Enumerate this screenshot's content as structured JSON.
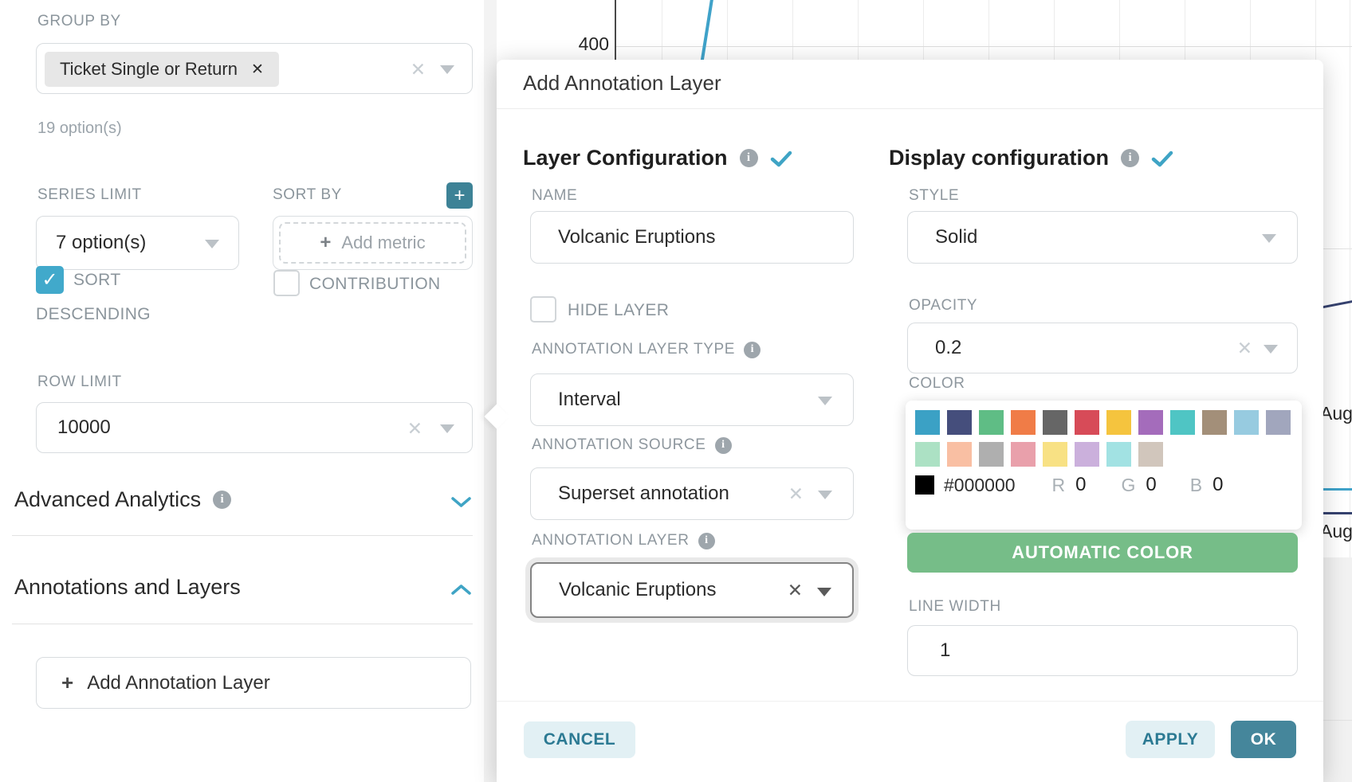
{
  "controls": {
    "group_by": {
      "label": "GROUP BY",
      "tag": "Ticket Single or Return",
      "tag_remove_icon": "✕",
      "hint": "19 option(s)"
    },
    "series_limit": {
      "label": "SERIES LIMIT",
      "value": "7 option(s)"
    },
    "sort_by": {
      "label": "SORT BY",
      "placeholder": "Add metric",
      "plus": "+"
    },
    "sort_descending": {
      "label_line1": "SORT",
      "label_line2": "DESCENDING",
      "checked": true,
      "check_glyph": "✓"
    },
    "contribution": {
      "label": "CONTRIBUTION",
      "checked": false
    },
    "row_limit": {
      "label": "ROW LIMIT",
      "value": "10000"
    },
    "advanced_analytics": {
      "title": "Advanced Analytics"
    },
    "annotations_layers": {
      "title": "Annotations and Layers",
      "add_button": "Add Annotation Layer",
      "add_plus": "+"
    }
  },
  "popover": {
    "title": "Add Annotation Layer",
    "layer_configuration": {
      "heading": "Layer Configuration",
      "name_label": "NAME",
      "name_value": "Volcanic Eruptions",
      "hide_layer_label": "HIDE LAYER",
      "type_label": "ANNOTATION LAYER TYPE",
      "type_value": "Interval",
      "source_label": "ANNOTATION SOURCE",
      "source_value": "Superset annotation",
      "layer_label": "ANNOTATION LAYER",
      "layer_value": "Volcanic Eruptions"
    },
    "display_configuration": {
      "heading": "Display configuration",
      "style_label": "STYLE",
      "style_value": "Solid",
      "opacity_label": "OPACITY",
      "opacity_value": "0.2",
      "color_label": "COLOR",
      "palette_row1": [
        "#3BA1C5",
        "#454E7C",
        "#5FBD85",
        "#F07C47",
        "#666666",
        "#D74B58",
        "#F5C43E",
        "#A46CBB",
        "#4FC5C4",
        "#A38F79",
        "#97CBE0",
        "#A1A6BD"
      ],
      "palette_row2": [
        "#ACE1C4",
        "#F9BFA3",
        "#AFAFAF",
        "#E9A0AB",
        "#F8E184",
        "#CBB0DC",
        "#A2E2E3",
        "#D1C6BC"
      ],
      "current_color": {
        "hex": "#000000",
        "r_label": "R",
        "r_value": "0",
        "g_label": "G",
        "g_value": "0",
        "b_label": "B",
        "b_value": "0"
      },
      "automatic_color_label": "AUTOMATIC COLOR",
      "line_width_label": "LINE WIDTH",
      "line_width_value": "1"
    },
    "footer": {
      "cancel": "CANCEL",
      "apply": "APPLY",
      "ok": "OK"
    }
  },
  "background_chart": {
    "type": "line",
    "visible_y_tick": "400",
    "visible_x_labels": [
      "Aug",
      "Aug"
    ],
    "line_colors": {
      "main_blue": "#3FA2C9",
      "navy": "#36426F",
      "teal": "#3FA2C9"
    },
    "grid": true
  },
  "accents": {
    "teal_accent": "#41A3C6",
    "teal_button": "#45869B",
    "teal_plus_button": "#3D8296",
    "green_button": "#76BD88",
    "light_button_bg": "#E2F0F4",
    "checked_checkbox": "#41A9CB"
  }
}
